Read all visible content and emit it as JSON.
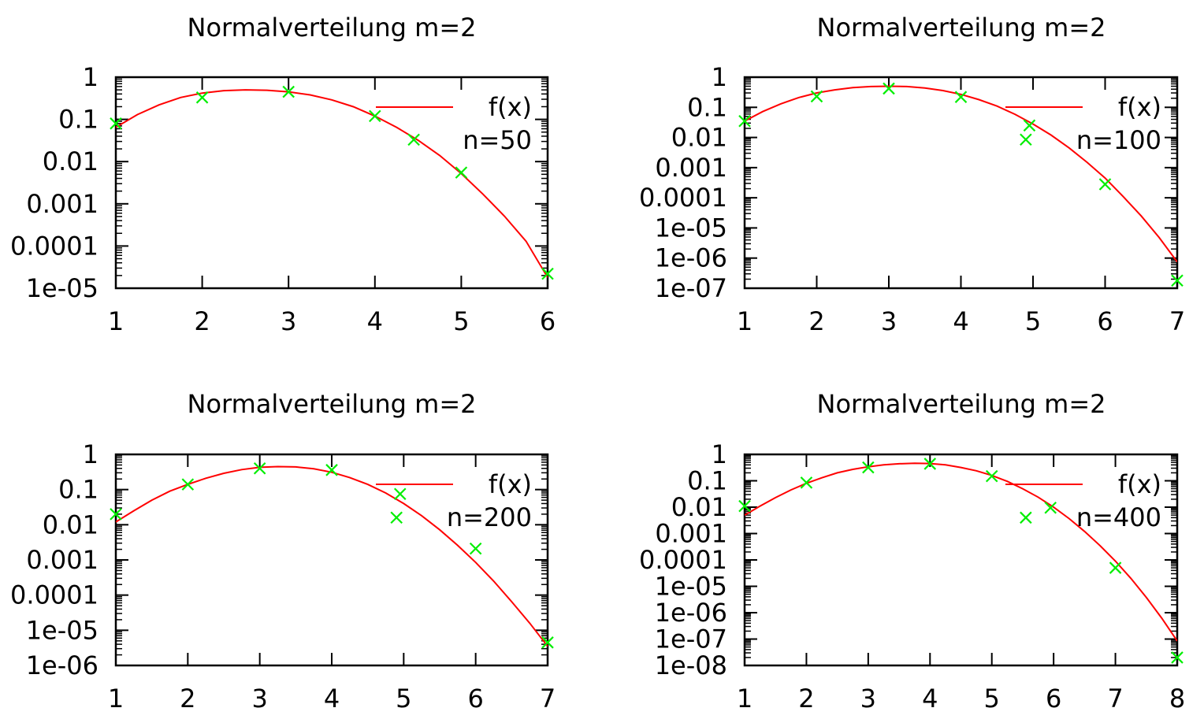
{
  "chart_data": [
    {
      "type": "line",
      "title": "Normalverteilung m=2",
      "xlabel": "",
      "ylabel": "",
      "xlim": [
        1,
        6
      ],
      "ylim": [
        1e-05,
        1
      ],
      "yscale": "log",
      "x_ticks": [
        "1",
        "2",
        "3",
        "4",
        "5",
        "6"
      ],
      "y_ticks": [
        "1",
        "0.1",
        "0.01",
        "0.001",
        "0.0001",
        "1e-05"
      ],
      "legend_position": "top-right",
      "grid": false,
      "series": [
        {
          "name": "f(x)",
          "kind": "line",
          "color": "#ff0000",
          "x": [
            1,
            1.25,
            1.5,
            1.75,
            2,
            2.25,
            2.5,
            2.75,
            3,
            3.25,
            3.5,
            3.75,
            4,
            4.25,
            4.5,
            4.75,
            5,
            5.25,
            5.5,
            5.75,
            6
          ],
          "y": [
            0.065,
            0.13,
            0.22,
            0.33,
            0.42,
            0.48,
            0.5,
            0.49,
            0.45,
            0.38,
            0.29,
            0.2,
            0.12,
            0.065,
            0.032,
            0.014,
            0.0052,
            0.0017,
            0.00051,
            0.00013,
            1.8e-05
          ]
        },
        {
          "name": "n=50",
          "kind": "scatter",
          "color": "#00ee00",
          "x": [
            1,
            2,
            3,
            4,
            4.45,
            5,
            6
          ],
          "y": [
            0.08,
            0.33,
            0.45,
            0.12,
            0.033,
            0.0055,
            2.2e-05
          ]
        }
      ]
    },
    {
      "type": "line",
      "title": "Normalverteilung m=2",
      "xlabel": "",
      "ylabel": "",
      "xlim": [
        1,
        7
      ],
      "ylim": [
        1e-07,
        1
      ],
      "yscale": "log",
      "x_ticks": [
        "1",
        "2",
        "3",
        "4",
        "5",
        "6",
        "7"
      ],
      "y_ticks": [
        "1",
        "0.1",
        "0.01",
        "0.001",
        "0.0001",
        "1e-05",
        "1e-06",
        "1e-07"
      ],
      "legend_position": "top-right",
      "grid": false,
      "series": [
        {
          "name": "f(x)",
          "kind": "line",
          "color": "#ff0000",
          "x": [
            1,
            1.25,
            1.5,
            1.75,
            2,
            2.25,
            2.5,
            2.75,
            3,
            3.25,
            3.5,
            3.75,
            4,
            4.25,
            4.5,
            4.75,
            5,
            5.25,
            5.5,
            5.75,
            6,
            6.25,
            6.5,
            6.75,
            7
          ],
          "y": [
            0.035,
            0.072,
            0.13,
            0.21,
            0.3,
            0.38,
            0.45,
            0.49,
            0.5,
            0.49,
            0.44,
            0.36,
            0.27,
            0.18,
            0.11,
            0.059,
            0.028,
            0.012,
            0.0045,
            0.0015,
            0.00045,
            0.00011,
            2.5e-05,
            4.8e-06,
            7.5e-07
          ]
        },
        {
          "name": "n=100",
          "kind": "scatter",
          "color": "#00ee00",
          "x": [
            1,
            2,
            3,
            4,
            4.95,
            4.9,
            6,
            7
          ],
          "y": [
            0.035,
            0.23,
            0.42,
            0.22,
            0.025,
            0.0085,
            0.00028,
            1.8e-07
          ]
        }
      ]
    },
    {
      "type": "line",
      "title": "Normalverteilung m=2",
      "xlabel": "",
      "ylabel": "",
      "xlim": [
        1,
        7
      ],
      "ylim": [
        1e-06,
        1
      ],
      "yscale": "log",
      "x_ticks": [
        "1",
        "2",
        "3",
        "4",
        "5",
        "6",
        "7"
      ],
      "y_ticks": [
        "1",
        "0.1",
        "0.01",
        "0.001",
        "0.0001",
        "1e-05",
        "1e-06"
      ],
      "legend_position": "top-right",
      "grid": false,
      "series": [
        {
          "name": "f(x)",
          "kind": "line",
          "color": "#ff0000",
          "x": [
            1,
            1.25,
            1.5,
            1.75,
            2,
            2.25,
            2.5,
            2.75,
            3,
            3.25,
            3.5,
            3.75,
            4,
            4.25,
            4.5,
            4.75,
            5,
            5.25,
            5.5,
            5.75,
            6,
            6.25,
            6.5,
            6.75,
            7
          ],
          "y": [
            0.012,
            0.025,
            0.05,
            0.09,
            0.14,
            0.21,
            0.29,
            0.37,
            0.43,
            0.45,
            0.44,
            0.39,
            0.31,
            0.22,
            0.14,
            0.08,
            0.04,
            0.018,
            0.0072,
            0.0026,
            0.00085,
            0.00025,
            6.5e-05,
            1.6e-05,
            3.5e-06
          ]
        },
        {
          "name": "n=200",
          "kind": "scatter",
          "color": "#00ee00",
          "x": [
            1,
            2,
            3,
            4,
            4.95,
            4.9,
            6,
            7
          ],
          "y": [
            0.02,
            0.14,
            0.4,
            0.36,
            0.075,
            0.016,
            0.0021,
            4.5e-06
          ]
        }
      ]
    },
    {
      "type": "line",
      "title": "Normalverteilung m=2",
      "xlabel": "",
      "ylabel": "",
      "xlim": [
        1,
        8
      ],
      "ylim": [
        1e-08,
        1
      ],
      "yscale": "log",
      "x_ticks": [
        "1",
        "2",
        "3",
        "4",
        "5",
        "6",
        "7",
        "8"
      ],
      "y_ticks": [
        "1",
        "0.1",
        "0.01",
        "0.001",
        "0.0001",
        "1e-05",
        "1e-06",
        "1e-07",
        "1e-08"
      ],
      "legend_position": "top-right",
      "grid": false,
      "series": [
        {
          "name": "f(x)",
          "kind": "line",
          "color": "#ff0000",
          "x": [
            1,
            1.25,
            1.5,
            1.75,
            2,
            2.25,
            2.5,
            2.75,
            3,
            3.25,
            3.5,
            3.75,
            4,
            4.25,
            4.5,
            4.75,
            5,
            5.25,
            5.5,
            5.75,
            6,
            6.25,
            6.5,
            6.75,
            7,
            7.25,
            7.5,
            7.75,
            8
          ],
          "y": [
            0.005,
            0.011,
            0.023,
            0.045,
            0.08,
            0.13,
            0.2,
            0.27,
            0.34,
            0.4,
            0.44,
            0.46,
            0.45,
            0.4,
            0.32,
            0.24,
            0.16,
            0.095,
            0.05,
            0.024,
            0.01,
            0.0037,
            0.0012,
            0.00035,
            9e-05,
            2e-05,
            3.8e-06,
            6.2e-07,
            8.5e-08
          ]
        },
        {
          "name": "n=400",
          "kind": "scatter",
          "color": "#00ee00",
          "x": [
            1,
            2,
            3,
            4,
            5,
            5.55,
            5.95,
            7,
            8
          ],
          "y": [
            0.011,
            0.085,
            0.32,
            0.44,
            0.15,
            0.004,
            0.0095,
            5e-05,
            2e-08
          ]
        }
      ]
    }
  ]
}
